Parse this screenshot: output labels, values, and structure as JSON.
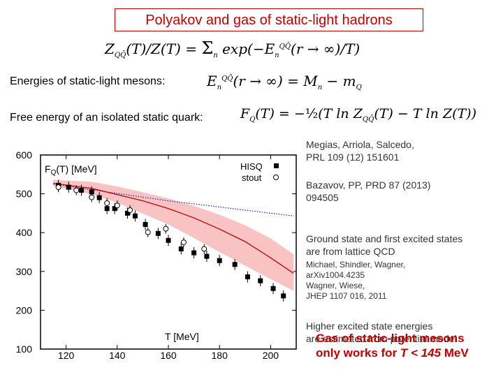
{
  "title": "Polyakov and gas of static-light hadrons",
  "equations": {
    "partition": "Z_{QQ̄}(T)/Z(T) = Σ_n exp(−E_n^{QQ̄}(r → ∞)/T)",
    "energies": "E_n^{QQ̄}(r → ∞) = M_n − m_Q",
    "free_energy": "F_Q(T) = −½(T ln Z_{QQ̄}(T) − T ln Z(T))"
  },
  "labels": {
    "energies": "Energies of static-light mesons:",
    "free_energy": "Free energy of an isolated static quark:"
  },
  "refs": {
    "megias_1": "Megias, Arriola, Salcedo,",
    "megias_2": "PRL 109 (12) 151601",
    "bazavov_1": "Bazavov, PP, PRD 87 (2013)",
    "bazavov_2": "094505",
    "ground_1": "Ground state and first excited states",
    "ground_2": "are from lattice QCD",
    "michael_1": "Michael, Shindler, Wagner,",
    "michael_2": "arXiv1004.4235",
    "michael_3": "Wagner, Wiese,",
    "michael_4": "JHEP 1107 016, 2011",
    "higher_1": "Higher excited state energies",
    "higher_2": "are estimated from potential model",
    "gas_1": "Gas of static-light mesons",
    "gas_2a": "only works for ",
    "gas_2b": "T < 145",
    "gas_2c": " MeV"
  },
  "chart_data": {
    "type": "scatter",
    "title": "",
    "ylabel": "F_Q(T) [MeV]",
    "xlabel": "T [MeV]",
    "xlim": [
      110,
      210
    ],
    "ylim": [
      100,
      600
    ],
    "xticks": [
      120,
      140,
      160,
      180,
      200
    ],
    "yticks": [
      100,
      200,
      300,
      400,
      500,
      600
    ],
    "legend": [
      "HISQ",
      "stout"
    ],
    "series": [
      {
        "name": "HISQ",
        "marker": "filled-square",
        "x": [
          117,
          121,
          126,
          130,
          133,
          136,
          139,
          144,
          147,
          151,
          156,
          160,
          165,
          170,
          175,
          180,
          186,
          191,
          196,
          201,
          205
        ],
        "y": [
          522,
          517,
          509,
          505,
          490,
          462,
          462,
          450,
          443,
          421,
          398,
          380,
          358,
          348,
          339,
          328,
          318,
          286,
          276,
          256,
          237
        ]
      },
      {
        "name": "stout",
        "marker": "open-circle",
        "x": [
          117,
          124,
          130,
          136,
          140,
          145,
          152,
          159,
          166,
          174
        ],
        "y": [
          517,
          509,
          491,
          476,
          470,
          458,
          401,
          410,
          375,
          358
        ]
      },
      {
        "name": "",
        "style": "dotted-blue-line",
        "x": [
          115,
          140,
          160,
          180,
          200,
          209
        ],
        "y": [
          525,
          501,
          482,
          466,
          450,
          443
        ]
      },
      {
        "name": "",
        "style": "red-line-with-band",
        "x": [
          115,
          130,
          140,
          150,
          160,
          170,
          180,
          190,
          200,
          209
        ],
        "y": [
          527,
          514,
          498,
          482,
          462,
          438,
          409,
          377,
          335,
          295
        ],
        "band_low": [
          519,
          499,
          477,
          449,
          421,
          386,
          350,
          315,
          280,
          250
        ],
        "band_high": [
          536,
          531,
          519,
          504,
          488,
          469,
          446,
          419,
          385,
          344
        ]
      }
    ]
  }
}
